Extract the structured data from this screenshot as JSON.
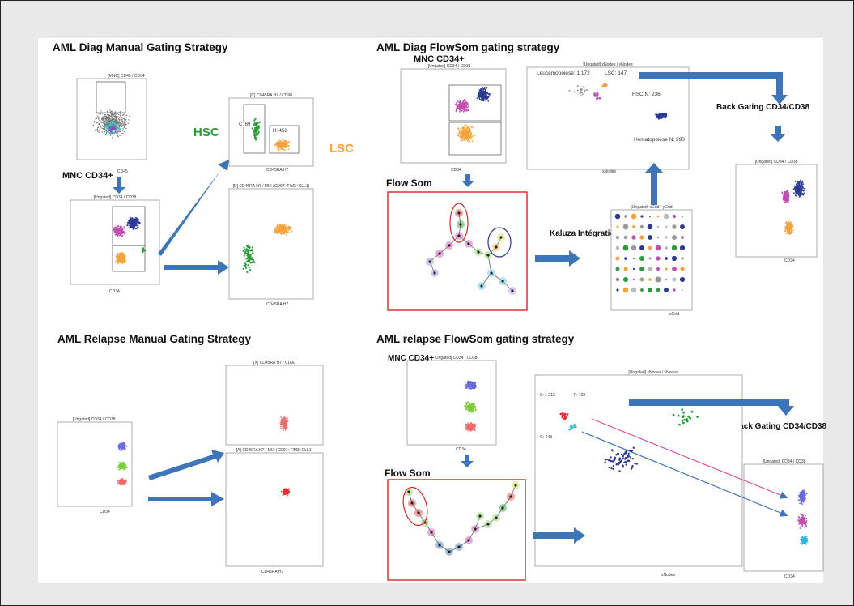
{
  "titles": {
    "diag_manual": "AML Diag Manual Gating Strategy",
    "diag_flowsom": "AML Diag FlowSom gating strategy",
    "relapse_manual": "AML Relapse Manual Gating Strategy",
    "relapse_flowsom": "AML relapse FlowSom gating strategy"
  },
  "labels": {
    "mnc_cd34": "MNC CD34+",
    "hsc": "HSC",
    "lsc": "LSC",
    "flow_som": "Flow Som",
    "back_gating": "Back Gating CD34/CD38",
    "kaluza": "Kaluza Intégration"
  },
  "plot_titles": {
    "mnc": "[MNC] CD45 / CD34",
    "ungated_cd34_cd38": "[Ungated] CD34 / CD38",
    "c_cd45ra_cd90": "[C] CD45RA H7 / CD90",
    "d_cd45ra_mix": "[D] CD45RA H7 / MIX (CD97+TIM3+CLL1)",
    "xnodes_ynodes": "[Ungated] xNodes / yNodes",
    "xgrid_ygrid": "[Ungated] xGrid / yGrid",
    "x_cd45ra_cd90": "[X] CD45RA H7 / CD90",
    "a_cd45ra_mix": "[A] CD45RA H7 / MIX (CD97+TIM3+CLL1)"
  },
  "axes": {
    "cd45": "CD45",
    "cd34": "CD34",
    "cd38": "CD38",
    "cd90": "CD90",
    "cd45ra": "CD45RA H7",
    "mix": "MIX (CD97+TIM3+CLL1)",
    "xnodes": "xNodes",
    "ynodes": "yNodes",
    "xgrid": "xGrid",
    "ygrid": "yGrid"
  },
  "annotations": {
    "c69": "C: 69",
    "h456": "H: 456",
    "leucemo": "Leucemopoiese: 1 172",
    "lsc147": "LSC: 147",
    "hscn": "HSC N: 236",
    "hemato": "Hematopoiese N: 990",
    "s1212": "S: 1 212",
    "f108": "F: 108",
    "g443": "G: 443"
  },
  "colors": {
    "blue": "#3e74b8",
    "magenta": "#c04fb0",
    "orange": "#f5a33a",
    "green": "#2b9a3a",
    "navy": "#2c3a93",
    "red": "#e03030"
  }
}
